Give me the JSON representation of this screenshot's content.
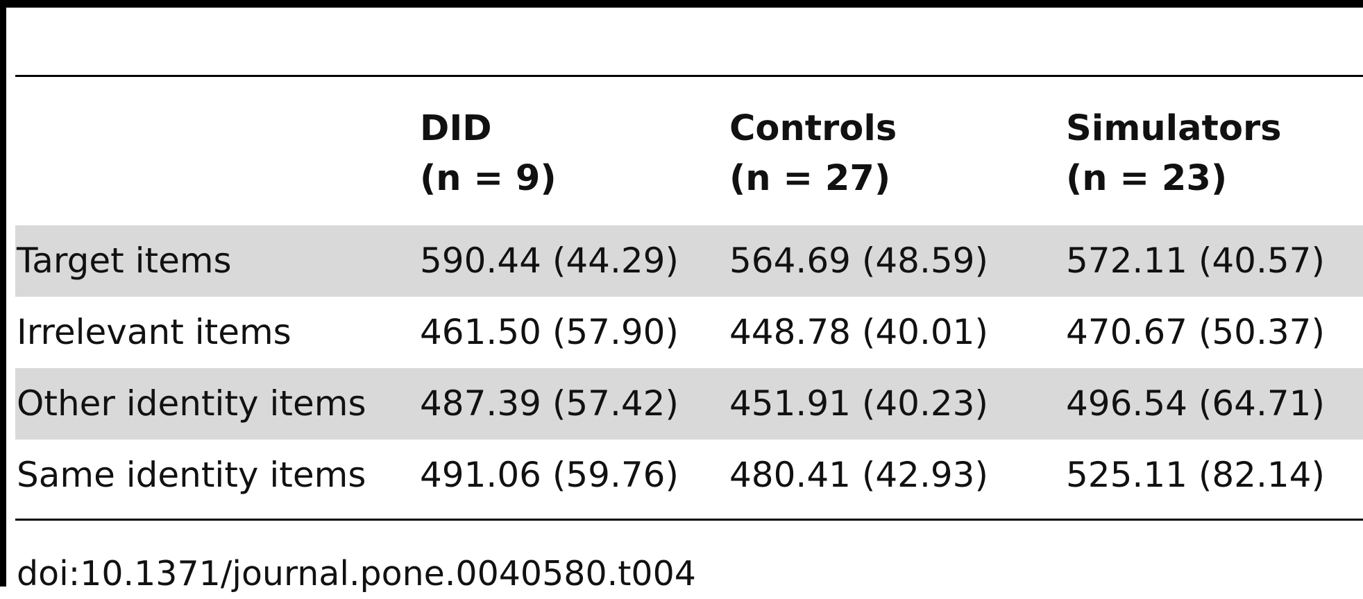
{
  "table": {
    "columns": [
      {
        "name": "",
        "n": ""
      },
      {
        "name": "DID",
        "n": "(n = 9)"
      },
      {
        "name": "Controls",
        "n": "(n = 27)"
      },
      {
        "name": "Simulators",
        "n": "(n = 23)"
      }
    ],
    "rows": [
      {
        "label": "Target items",
        "values": [
          "590.44 (44.29)",
          "564.69 (48.59)",
          "572.11 (40.57)"
        ]
      },
      {
        "label": "Irrelevant items",
        "values": [
          "461.50 (57.90)",
          "448.78 (40.01)",
          "470.67 (50.37)"
        ]
      },
      {
        "label": "Other identity items",
        "values": [
          "487.39 (57.42)",
          "451.91 (40.23)",
          "496.54 (64.71)"
        ]
      },
      {
        "label": "Same identity items",
        "values": [
          "491.06 (59.76)",
          "480.41 (42.93)",
          "525.11 (82.14)"
        ]
      }
    ],
    "row_shading": [
      "#d9d9d9",
      "#ffffff",
      "#d9d9d9",
      "#ffffff"
    ]
  },
  "footnote": "doi:10.1371/journal.pone.0040580.t004"
}
